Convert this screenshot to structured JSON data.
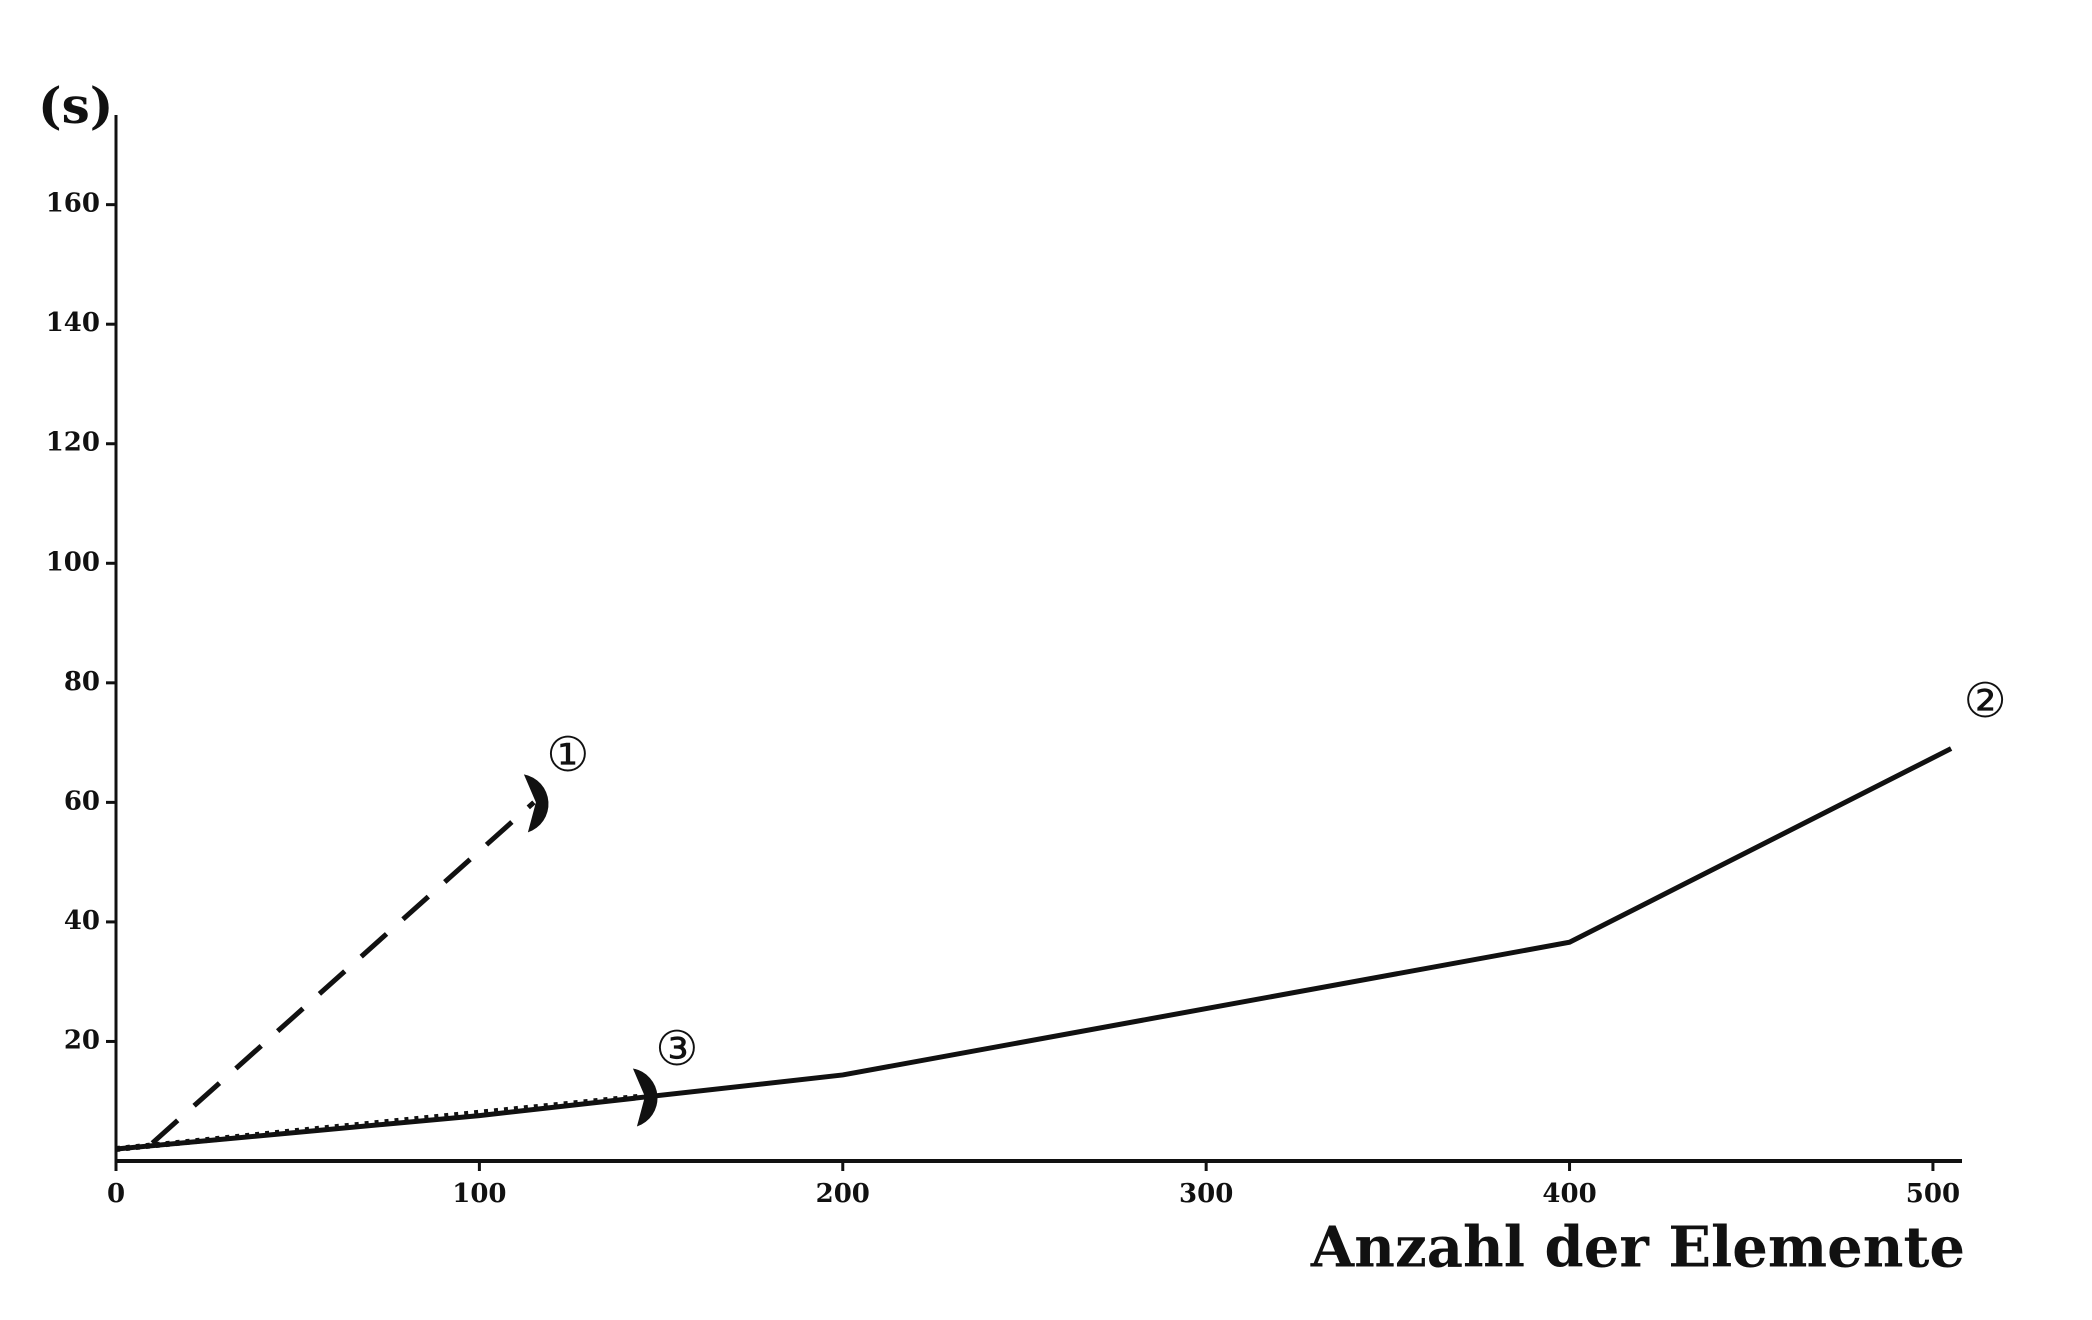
{
  "chart_data": {
    "type": "line",
    "y_label": "(s)",
    "x_label": "Anzahl der Elemente",
    "xlim": [
      0,
      508
    ],
    "ylim": [
      0,
      175
    ],
    "xticks": [
      0,
      100,
      200,
      300,
      400,
      500
    ],
    "yticks": [
      20,
      40,
      60,
      80,
      100,
      120,
      140,
      160
    ],
    "series": [
      {
        "name": "①",
        "color": "#111111",
        "style": "dashed",
        "x": [
          10,
          115
        ],
        "values": [
          3,
          60
        ]
      },
      {
        "name": "②",
        "color": "#111111",
        "style": "solid",
        "x": [
          0,
          100,
          200,
          400,
          505
        ],
        "values": [
          2,
          7.6,
          14.4,
          36.6,
          69
        ]
      },
      {
        "name": "③",
        "color": "#111111",
        "style": "dotted",
        "x": [
          0,
          145
        ],
        "values": [
          2,
          10.8
        ]
      }
    ]
  }
}
